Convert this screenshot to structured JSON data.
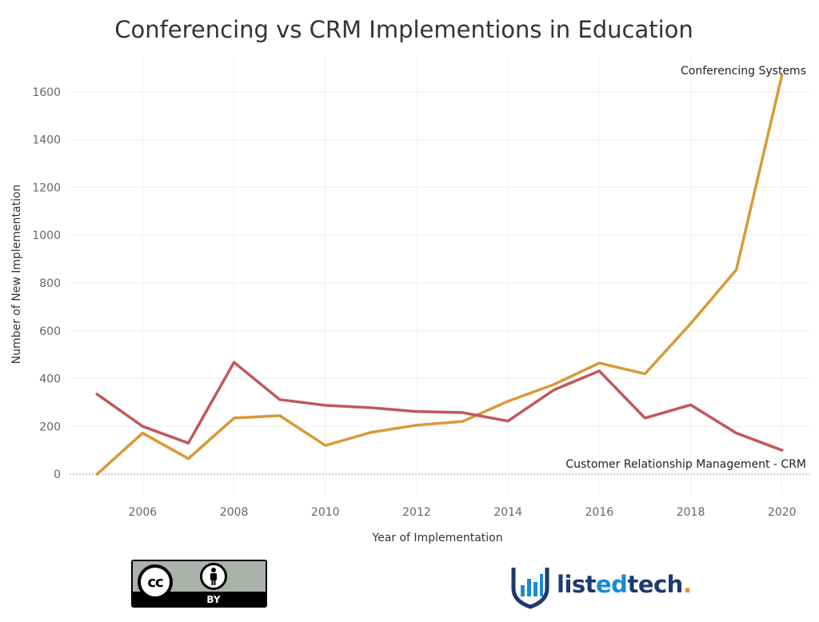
{
  "chart_data": {
    "type": "line",
    "title": "Conferencing vs CRM Implementions in Education",
    "xlabel": "Year of Implementation",
    "ylabel": "Number of New Implementation",
    "x": [
      2005,
      2006,
      2007,
      2008,
      2009,
      2010,
      2011,
      2012,
      2013,
      2014,
      2015,
      2016,
      2017,
      2018,
      2019,
      2020
    ],
    "xticks": [
      2006,
      2008,
      2010,
      2012,
      2014,
      2016,
      2018,
      2020
    ],
    "yticks": [
      0,
      200,
      400,
      600,
      800,
      1000,
      1200,
      1400,
      1600
    ],
    "xlim": [
      2004.4,
      2020.6
    ],
    "ylim": [
      -90,
      1750
    ],
    "grid": true,
    "zero_line": "dotted",
    "series": [
      {
        "name": "Conferencing Systems",
        "color": "#d89a34",
        "values": [
          0,
          172,
          65,
          235,
          245,
          120,
          175,
          205,
          220,
          305,
          375,
          465,
          420,
          630,
          855,
          1670
        ]
      },
      {
        "name": "Customer Relationship Management - CRM",
        "color": "#c0585a",
        "values": [
          335,
          200,
          130,
          468,
          312,
          288,
          278,
          262,
          258,
          222,
          352,
          432,
          235,
          290,
          172,
          100
        ]
      }
    ]
  },
  "footer": {
    "license": {
      "cc_symbol": "cc",
      "by_label": "BY",
      "icon": "person-icon"
    },
    "brand": {
      "prefix": "list",
      "accent": "ed",
      "suffix": "tech",
      "dot": ".",
      "icon": "bar-chart-shield-icon"
    }
  }
}
